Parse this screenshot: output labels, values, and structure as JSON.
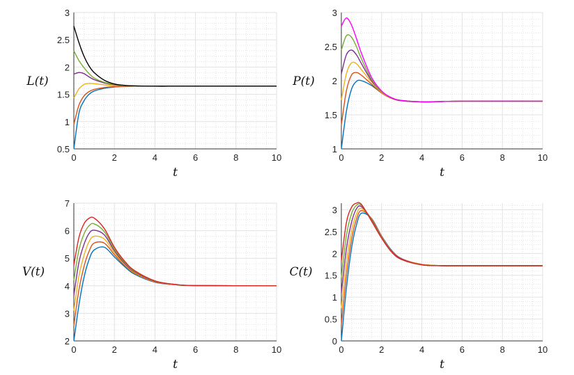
{
  "chart_data": [
    {
      "type": "line",
      "ylabel": "L(t)",
      "xlabel": "t",
      "xlim": [
        0,
        10
      ],
      "ylim": [
        0.5,
        3
      ],
      "xticks": [
        "0",
        "2",
        "4",
        "6",
        "8",
        "10"
      ],
      "yticks": [
        "0.5",
        "1",
        "1.5",
        "2",
        "2.5",
        "3"
      ],
      "grid": true,
      "x": [
        0,
        0.25,
        0.5,
        0.75,
        1,
        1.5,
        2,
        2.5,
        3,
        4,
        5,
        6,
        10
      ],
      "series": [
        {
          "color": "#0072BD",
          "values": [
            0.5,
            1.15,
            1.38,
            1.5,
            1.56,
            1.61,
            1.635,
            1.645,
            1.65,
            1.65,
            1.65,
            1.65,
            1.65
          ]
        },
        {
          "color": "#D95319",
          "values": [
            0.95,
            1.3,
            1.47,
            1.55,
            1.59,
            1.625,
            1.64,
            1.645,
            1.65,
            1.65,
            1.65,
            1.65,
            1.65
          ]
        },
        {
          "color": "#EDB120",
          "values": [
            1.43,
            1.6,
            1.68,
            1.7,
            1.695,
            1.675,
            1.66,
            1.655,
            1.65,
            1.65,
            1.65,
            1.65,
            1.65
          ]
        },
        {
          "color": "#7E2F8E",
          "values": [
            1.87,
            1.9,
            1.88,
            1.82,
            1.77,
            1.71,
            1.675,
            1.66,
            1.653,
            1.65,
            1.65,
            1.65,
            1.65
          ]
        },
        {
          "color": "#77AC30",
          "values": [
            2.3,
            2.12,
            1.99,
            1.88,
            1.8,
            1.72,
            1.68,
            1.66,
            1.654,
            1.65,
            1.65,
            1.65,
            1.65
          ]
        },
        {
          "color": "#000000",
          "values": [
            2.75,
            2.45,
            2.2,
            2.02,
            1.9,
            1.76,
            1.69,
            1.665,
            1.655,
            1.65,
            1.65,
            1.65,
            1.65
          ]
        }
      ]
    },
    {
      "type": "line",
      "ylabel": "P(t)",
      "xlabel": "t",
      "xlim": [
        0,
        10
      ],
      "ylim": [
        1,
        3
      ],
      "xticks": [
        "0",
        "2",
        "4",
        "6",
        "8",
        "10"
      ],
      "yticks": [
        "1",
        "1.5",
        "2",
        "2.5",
        "3"
      ],
      "grid": true,
      "x": [
        0,
        0.25,
        0.5,
        0.75,
        1,
        1.5,
        2,
        2.5,
        3,
        4,
        5,
        6,
        10
      ],
      "series": [
        {
          "color": "#0072BD",
          "values": [
            1.0,
            1.55,
            1.87,
            1.99,
            2.0,
            1.93,
            1.82,
            1.74,
            1.71,
            1.69,
            1.695,
            1.7,
            1.7
          ]
        },
        {
          "color": "#D95319",
          "values": [
            1.35,
            1.85,
            2.08,
            2.12,
            2.08,
            1.95,
            1.82,
            1.74,
            1.71,
            1.69,
            1.695,
            1.7,
            1.7
          ]
        },
        {
          "color": "#EDB120",
          "values": [
            1.72,
            2.1,
            2.26,
            2.25,
            2.16,
            1.98,
            1.83,
            1.74,
            1.705,
            1.69,
            1.695,
            1.7,
            1.7
          ]
        },
        {
          "color": "#7E2F8E",
          "values": [
            2.1,
            2.38,
            2.45,
            2.38,
            2.25,
            2.0,
            1.84,
            1.745,
            1.705,
            1.69,
            1.695,
            1.7,
            1.7
          ]
        },
        {
          "color": "#77AC30",
          "values": [
            2.45,
            2.66,
            2.64,
            2.5,
            2.32,
            2.02,
            1.84,
            1.75,
            1.71,
            1.69,
            1.695,
            1.7,
            1.7
          ]
        },
        {
          "color": "#FF00FF",
          "values": [
            2.8,
            2.92,
            2.82,
            2.62,
            2.4,
            2.05,
            1.85,
            1.75,
            1.71,
            1.69,
            1.695,
            1.7,
            1.7
          ]
        }
      ]
    },
    {
      "type": "line",
      "ylabel": "V(t)",
      "xlabel": "t",
      "xlim": [
        0,
        10
      ],
      "ylim": [
        2,
        7
      ],
      "xticks": [
        "0",
        "2",
        "4",
        "6",
        "8",
        "10"
      ],
      "yticks": [
        "2",
        "3",
        "4",
        "5",
        "6",
        "7"
      ],
      "grid": true,
      "x": [
        0,
        0.25,
        0.5,
        0.75,
        1,
        1.5,
        2,
        2.5,
        3,
        4,
        5,
        6,
        10
      ],
      "series": [
        {
          "color": "#0072BD",
          "values": [
            2.0,
            3.3,
            4.3,
            4.95,
            5.3,
            5.4,
            5.05,
            4.7,
            4.42,
            4.13,
            4.04,
            4.01,
            4.0
          ]
        },
        {
          "color": "#D95319",
          "values": [
            2.55,
            3.85,
            4.7,
            5.25,
            5.55,
            5.55,
            5.13,
            4.74,
            4.45,
            4.14,
            4.04,
            4.01,
            4.0
          ]
        },
        {
          "color": "#EDB120",
          "values": [
            3.1,
            4.35,
            5.1,
            5.6,
            5.8,
            5.7,
            5.2,
            4.78,
            4.47,
            4.15,
            4.04,
            4.01,
            4.0
          ]
        },
        {
          "color": "#7E2F8E",
          "values": [
            3.65,
            4.85,
            5.5,
            5.9,
            6.02,
            5.85,
            5.27,
            4.82,
            4.5,
            4.16,
            4.05,
            4.01,
            4.0
          ]
        },
        {
          "color": "#77AC30",
          "values": [
            4.2,
            5.3,
            5.88,
            6.18,
            6.25,
            5.97,
            5.33,
            4.86,
            4.52,
            4.17,
            4.05,
            4.01,
            4.0
          ]
        },
        {
          "color": "#DD2222",
          "values": [
            4.75,
            5.75,
            6.25,
            6.45,
            6.46,
            6.08,
            5.4,
            4.9,
            4.55,
            4.18,
            4.05,
            4.01,
            4.0
          ]
        }
      ]
    },
    {
      "type": "line",
      "ylabel": "C(t)",
      "xlabel": "t",
      "xlim": [
        0,
        10
      ],
      "ylim": [
        0,
        3.15
      ],
      "xticks": [
        "0",
        "2",
        "4",
        "6",
        "8",
        "10"
      ],
      "yticks": [
        "0",
        "0.5",
        "1",
        "1.5",
        "2",
        "2.5",
        "3"
      ],
      "grid": true,
      "x": [
        0,
        0.25,
        0.5,
        0.75,
        1,
        1.5,
        2,
        2.5,
        3,
        4,
        5,
        6,
        10
      ],
      "series": [
        {
          "color": "#0072BD",
          "values": [
            0,
            1.2,
            2.1,
            2.65,
            2.92,
            2.8,
            2.4,
            2.07,
            1.88,
            1.75,
            1.72,
            1.72,
            1.72
          ]
        },
        {
          "color": "#D95319",
          "values": [
            0.37,
            1.5,
            2.3,
            2.78,
            2.98,
            2.8,
            2.39,
            2.06,
            1.88,
            1.75,
            1.72,
            1.72,
            1.72
          ]
        },
        {
          "color": "#EDB120",
          "values": [
            0.75,
            1.8,
            2.5,
            2.9,
            3.03,
            2.79,
            2.38,
            2.05,
            1.87,
            1.75,
            1.72,
            1.72,
            1.72
          ]
        },
        {
          "color": "#7E2F8E",
          "values": [
            1.1,
            2.1,
            2.7,
            3.02,
            3.07,
            2.78,
            2.37,
            2.05,
            1.87,
            1.74,
            1.72,
            1.72,
            1.72
          ]
        },
        {
          "color": "#77AC30",
          "values": [
            1.45,
            2.4,
            2.9,
            3.1,
            3.1,
            2.76,
            2.36,
            2.04,
            1.86,
            1.74,
            1.72,
            1.72,
            1.72
          ]
        },
        {
          "color": "#DD2222",
          "values": [
            1.83,
            2.7,
            3.05,
            3.15,
            3.12,
            2.74,
            2.35,
            2.03,
            1.86,
            1.74,
            1.72,
            1.72,
            1.72
          ]
        }
      ]
    }
  ]
}
